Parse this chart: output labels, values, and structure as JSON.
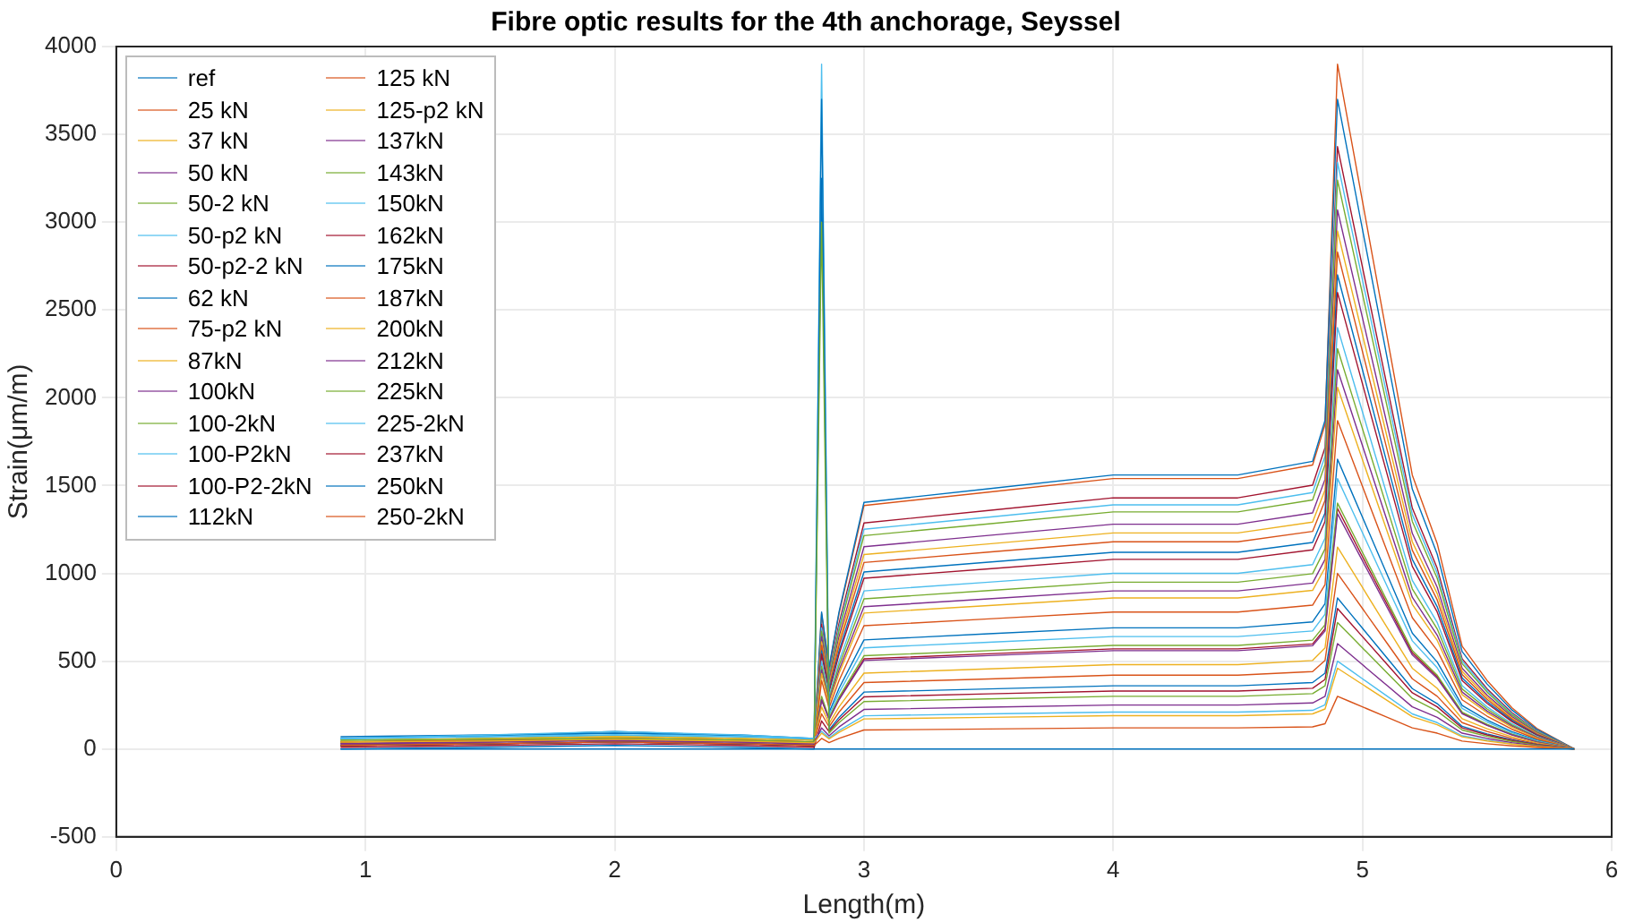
{
  "chart_data": {
    "type": "line",
    "title": "Fibre optic results for the 4th anchorage, Seyssel",
    "xlabel": "Length(m)",
    "ylabel": "Strain(μm/m)",
    "x": [
      0.9,
      1.5,
      2.0,
      2.5,
      2.8,
      2.83,
      2.86,
      2.9,
      3.0,
      3.5,
      4.0,
      4.5,
      4.8,
      4.85,
      4.9,
      4.95,
      5.0,
      5.1,
      5.2,
      5.3,
      5.4,
      5.5,
      5.6,
      5.7,
      5.8,
      5.85
    ],
    "xlim": [
      0,
      6
    ],
    "xticks": [
      0,
      1,
      2,
      3,
      4,
      5,
      6
    ],
    "ylim": [
      -500,
      4000
    ],
    "yticks": [
      -500,
      0,
      500,
      1000,
      1500,
      2000,
      2500,
      3000,
      3500,
      4000
    ],
    "grid": true,
    "legend": "top left",
    "series": [
      {
        "name": "ref",
        "color": "#0072bd",
        "values": [
          0,
          0,
          0,
          0,
          0,
          0,
          0,
          0,
          0,
          0,
          0,
          0,
          0,
          0,
          0,
          0,
          0,
          0,
          0,
          0,
          0,
          0,
          0,
          0,
          0,
          0
        ]
      },
      {
        "name": "25 kN",
        "color": "#d95319",
        "values": [
          20,
          30,
          40,
          30,
          20,
          60,
          36,
          60,
          108,
          114,
          120,
          120,
          126,
          144,
          300,
          270,
          240,
          180,
          120,
          90,
          45,
          30,
          18,
          9,
          3,
          0
        ]
      },
      {
        "name": "37 kN",
        "color": "#edb120",
        "values": [
          40,
          45,
          55,
          45,
          35,
          90,
          57,
          95,
          171,
          180,
          190,
          190,
          200,
          228,
          460,
          414,
          368,
          276,
          184,
          138,
          69,
          46,
          28,
          14,
          5,
          0
        ]
      },
      {
        "name": "50 kN",
        "color": "#7e2f8e",
        "values": [
          30,
          40,
          50,
          40,
          30,
          120,
          75,
          125,
          225,
          238,
          250,
          250,
          262,
          300,
          600,
          540,
          480,
          360,
          240,
          180,
          90,
          60,
          36,
          18,
          6,
          0
        ]
      },
      {
        "name": "50-2 kN",
        "color": "#77ac30",
        "values": [
          50,
          55,
          60,
          50,
          40,
          3000,
          90,
          150,
          270,
          285,
          300,
          300,
          315,
          360,
          720,
          648,
          576,
          432,
          288,
          216,
          108,
          72,
          43,
          22,
          7,
          0
        ]
      },
      {
        "name": "50-p2 kN",
        "color": "#4dbeee",
        "values": [
          60,
          70,
          80,
          70,
          60,
          100,
          63,
          105,
          189,
          200,
          210,
          210,
          220,
          252,
          500,
          450,
          400,
          300,
          200,
          150,
          75,
          50,
          30,
          15,
          5,
          0
        ]
      },
      {
        "name": "50-p2-2 kN",
        "color": "#a2142f",
        "values": [
          10,
          20,
          30,
          20,
          10,
          160,
          99,
          165,
          297,
          314,
          330,
          330,
          346,
          396,
          800,
          720,
          640,
          480,
          320,
          240,
          120,
          80,
          48,
          24,
          8,
          0
        ]
      },
      {
        "name": "62 kN",
        "color": "#0072bd",
        "values": [
          20,
          30,
          40,
          30,
          20,
          3700,
          108,
          180,
          324,
          342,
          360,
          360,
          378,
          432,
          860,
          774,
          688,
          516,
          344,
          258,
          129,
          86,
          52,
          26,
          9,
          0
        ]
      },
      {
        "name": "75-p2 kN",
        "color": "#d95319",
        "values": [
          40,
          50,
          60,
          50,
          40,
          200,
          126,
          210,
          378,
          399,
          420,
          420,
          441,
          504,
          1000,
          900,
          800,
          600,
          400,
          300,
          150,
          100,
          60,
          30,
          10,
          0
        ]
      },
      {
        "name": "87kN",
        "color": "#edb120",
        "values": [
          50,
          60,
          70,
          60,
          50,
          240,
          144,
          240,
          432,
          456,
          480,
          480,
          504,
          576,
          1150,
          1035,
          920,
          690,
          460,
          345,
          172,
          115,
          69,
          35,
          12,
          0
        ]
      },
      {
        "name": "100kN",
        "color": "#7e2f8e",
        "values": [
          30,
          40,
          50,
          40,
          30,
          280,
          168,
          280,
          504,
          532,
          560,
          560,
          588,
          672,
          1340,
          1206,
          1072,
          804,
          536,
          402,
          201,
          134,
          80,
          40,
          13,
          0
        ]
      },
      {
        "name": "100-2kN",
        "color": "#77ac30",
        "values": [
          40,
          50,
          60,
          50,
          40,
          300,
          177,
          295,
          531,
          560,
          590,
          590,
          620,
          708,
          1400,
          1260,
          1120,
          840,
          560,
          420,
          210,
          140,
          84,
          42,
          14,
          0
        ]
      },
      {
        "name": "100-P2kN",
        "color": "#4dbeee",
        "values": [
          60,
          80,
          100,
          80,
          60,
          3900,
          192,
          320,
          576,
          608,
          640,
          640,
          672,
          768,
          1540,
          1386,
          1232,
          924,
          616,
          462,
          231,
          154,
          92,
          46,
          15,
          0
        ]
      },
      {
        "name": "100-P2-2kN",
        "color": "#a2142f",
        "values": [
          20,
          30,
          40,
          30,
          20,
          280,
          171,
          285,
          513,
          542,
          570,
          570,
          598,
          684,
          1370,
          1233,
          1096,
          822,
          548,
          411,
          206,
          137,
          82,
          41,
          14,
          0
        ]
      },
      {
        "name": "112kN",
        "color": "#0072bd",
        "values": [
          70,
          80,
          90,
          80,
          60,
          3250,
          207,
          345,
          621,
          656,
          690,
          690,
          724,
          828,
          1650,
          1485,
          1320,
          990,
          660,
          495,
          248,
          165,
          99,
          50,
          16,
          0
        ]
      },
      {
        "name": "125 kN",
        "color": "#d95319",
        "values": [
          20,
          30,
          40,
          30,
          20,
          390,
          234,
          390,
          702,
          741,
          780,
          780,
          819,
          936,
          1870,
          1683,
          1496,
          1122,
          748,
          561,
          280,
          187,
          112,
          56,
          19,
          0
        ]
      },
      {
        "name": "125-p2 kN",
        "color": "#edb120",
        "values": [
          40,
          50,
          60,
          50,
          40,
          430,
          258,
          430,
          774,
          817,
          860,
          860,
          903,
          1032,
          2060,
          1854,
          1648,
          1236,
          824,
          618,
          309,
          206,
          124,
          62,
          21,
          0
        ]
      },
      {
        "name": "137kN",
        "color": "#7e2f8e",
        "values": [
          30,
          40,
          50,
          40,
          30,
          450,
          270,
          450,
          810,
          855,
          900,
          900,
          945,
          1080,
          2160,
          1944,
          1728,
          1296,
          864,
          648,
          324,
          216,
          130,
          65,
          22,
          0
        ]
      },
      {
        "name": "143kN",
        "color": "#77ac30",
        "values": [
          50,
          60,
          70,
          60,
          50,
          470,
          285,
          475,
          855,
          902,
          950,
          950,
          998,
          1140,
          2280,
          2052,
          1824,
          1368,
          912,
          684,
          342,
          228,
          137,
          68,
          23,
          0
        ]
      },
      {
        "name": "150kN",
        "color": "#4dbeee",
        "values": [
          60,
          70,
          90,
          70,
          60,
          500,
          300,
          500,
          900,
          950,
          1000,
          1000,
          1050,
          1200,
          2400,
          2160,
          1920,
          1440,
          960,
          720,
          360,
          240,
          144,
          72,
          24,
          0
        ]
      },
      {
        "name": "162kN",
        "color": "#a2142f",
        "values": [
          20,
          30,
          40,
          30,
          20,
          540,
          324,
          540,
          972,
          1026,
          1080,
          1080,
          1134,
          1296,
          2600,
          2340,
          2080,
          1560,
          1040,
          780,
          390,
          260,
          156,
          78,
          26,
          0
        ]
      },
      {
        "name": "175kN",
        "color": "#0072bd",
        "values": [
          0,
          10,
          20,
          10,
          0,
          560,
          336,
          560,
          1008,
          1064,
          1120,
          1120,
          1176,
          1344,
          2700,
          2430,
          2160,
          1620,
          1080,
          810,
          405,
          270,
          162,
          81,
          27,
          0
        ]
      },
      {
        "name": "187kN",
        "color": "#d95319",
        "values": [
          40,
          50,
          60,
          50,
          40,
          590,
          354,
          590,
          1062,
          1121,
          1180,
          1180,
          1239,
          1416,
          2830,
          2547,
          2264,
          1698,
          1132,
          849,
          424,
          283,
          170,
          85,
          28,
          0
        ]
      },
      {
        "name": "200kN",
        "color": "#edb120",
        "values": [
          30,
          40,
          50,
          40,
          30,
          610,
          369,
          615,
          1107,
          1168,
          1230,
          1230,
          1292,
          1476,
          2950,
          2655,
          2360,
          1770,
          1180,
          885,
          442,
          295,
          177,
          88,
          30,
          0
        ]
      },
      {
        "name": "212kN",
        "color": "#7e2f8e",
        "values": [
          40,
          50,
          60,
          50,
          40,
          640,
          384,
          640,
          1152,
          1216,
          1280,
          1280,
          1344,
          1536,
          3070,
          2763,
          2456,
          1842,
          1228,
          921,
          460,
          307,
          184,
          92,
          31,
          0
        ]
      },
      {
        "name": "225kN",
        "color": "#77ac30",
        "values": [
          30,
          40,
          50,
          40,
          30,
          670,
          405,
          675,
          1215,
          1282,
          1350,
          1350,
          1418,
          1620,
          3240,
          2916,
          2592,
          1944,
          1296,
          972,
          486,
          324,
          194,
          97,
          32,
          0
        ]
      },
      {
        "name": "225-2kN",
        "color": "#4dbeee",
        "values": [
          50,
          60,
          80,
          60,
          50,
          690,
          417,
          695,
          1251,
          1320,
          1390,
          1390,
          1460,
          1668,
          3340,
          3006,
          2672,
          2004,
          1336,
          1002,
          501,
          334,
          200,
          100,
          33,
          0
        ]
      },
      {
        "name": "237kN",
        "color": "#a2142f",
        "values": [
          20,
          30,
          40,
          30,
          20,
          710,
          429,
          715,
          1287,
          1358,
          1430,
          1430,
          1502,
          1716,
          3430,
          3087,
          2744,
          2058,
          1372,
          1029,
          514,
          343,
          206,
          103,
          34,
          0
        ]
      },
      {
        "name": "250kN",
        "color": "#0072bd",
        "values": [
          60,
          75,
          100,
          75,
          55,
          780,
          468,
          780,
          1404,
          1482,
          1560,
          1560,
          1638,
          1872,
          3700,
          3330,
          2960,
          2220,
          1480,
          1110,
          555,
          370,
          222,
          111,
          37,
          0
        ]
      },
      {
        "name": "250-2kN",
        "color": "#d95319",
        "values": [
          20,
          30,
          40,
          30,
          20,
          770,
          462,
          770,
          1386,
          1463,
          1540,
          1540,
          1617,
          1848,
          3900,
          3510,
          3120,
          2340,
          1560,
          1170,
          585,
          390,
          234,
          117,
          39,
          0
        ]
      }
    ]
  }
}
